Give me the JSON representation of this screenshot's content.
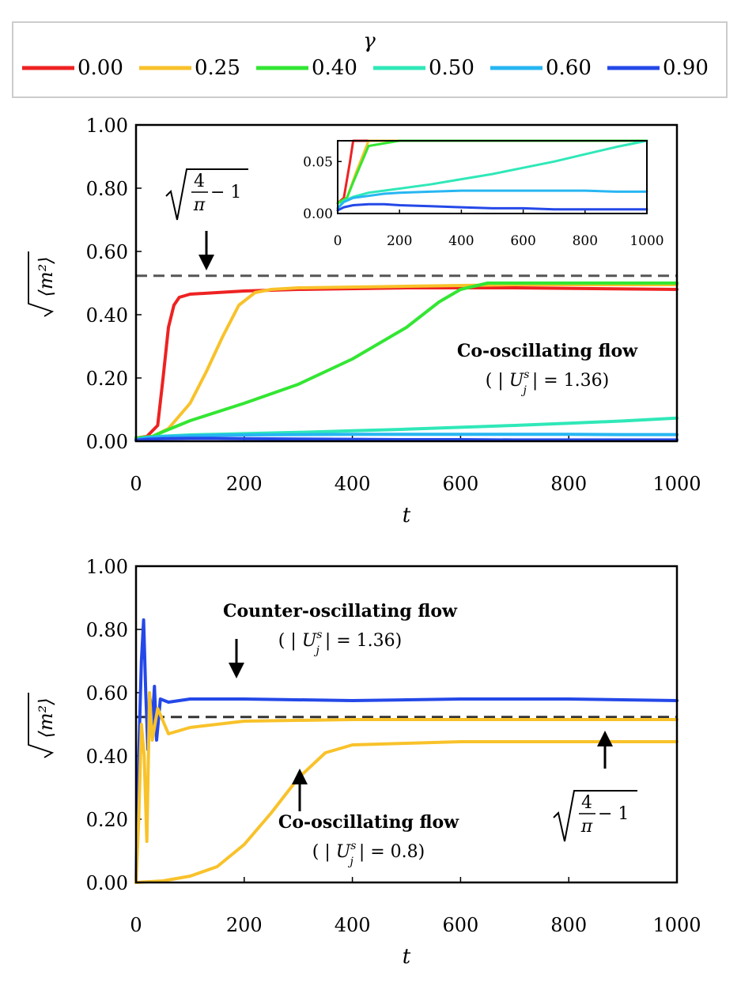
{
  "legend": {
    "title": "γ",
    "entries": [
      {
        "label": "0.00",
        "color": "#ee2222"
      },
      {
        "label": "0.25",
        "color": "#f8c22a"
      },
      {
        "label": "0.40",
        "color": "#33e633"
      },
      {
        "label": "0.50",
        "color": "#2fe8b8"
      },
      {
        "label": "0.60",
        "color": "#27b6f2"
      },
      {
        "label": "0.90",
        "color": "#2448e8"
      }
    ]
  },
  "chart_data": [
    {
      "type": "line",
      "id": "top",
      "xlabel": "t",
      "ylabel": "√⟨m²⟩",
      "xlim": [
        0,
        1000
      ],
      "ylim": [
        0,
        1
      ],
      "xticks": [
        "0",
        "200",
        "400",
        "600",
        "800",
        "1000"
      ],
      "yticks": [
        "0.00",
        "0.20",
        "0.40",
        "0.60",
        "0.80",
        "1.00"
      ],
      "reference_line": {
        "y": 0.523,
        "style": "dashed"
      },
      "series": [
        {
          "name": "γ = 0.00",
          "color": "#ee2222",
          "x": [
            0,
            20,
            40,
            50,
            60,
            70,
            80,
            100,
            150,
            200,
            300,
            500,
            700,
            1000
          ],
          "y": [
            0.01,
            0.015,
            0.05,
            0.2,
            0.36,
            0.43,
            0.455,
            0.465,
            0.47,
            0.475,
            0.48,
            0.485,
            0.485,
            0.48
          ]
        },
        {
          "name": "γ = 0.25",
          "color": "#f8c22a",
          "x": [
            0,
            30,
            60,
            100,
            130,
            160,
            190,
            220,
            250,
            300,
            500,
            700,
            1000
          ],
          "y": [
            0.01,
            0.015,
            0.04,
            0.12,
            0.22,
            0.33,
            0.43,
            0.47,
            0.48,
            0.485,
            0.49,
            0.495,
            0.495
          ]
        },
        {
          "name": "γ = 0.40",
          "color": "#33e633",
          "x": [
            0,
            30,
            50,
            100,
            200,
            300,
            400,
            500,
            560,
            600,
            650,
            700,
            800,
            1000
          ],
          "y": [
            0.01,
            0.015,
            0.03,
            0.065,
            0.12,
            0.18,
            0.26,
            0.36,
            0.44,
            0.48,
            0.5,
            0.5,
            0.5,
            0.5
          ]
        },
        {
          "name": "γ = 0.50",
          "color": "#2fe8b8",
          "x": [
            0,
            20,
            50,
            100,
            150,
            200,
            300,
            400,
            500,
            600,
            700,
            800,
            900,
            1000
          ],
          "y": [
            0.005,
            0.012,
            0.016,
            0.02,
            0.022,
            0.024,
            0.028,
            0.033,
            0.038,
            0.044,
            0.05,
            0.057,
            0.064,
            0.073
          ]
        },
        {
          "name": "γ = 0.60",
          "color": "#27b6f2",
          "x": [
            0,
            20,
            50,
            100,
            150,
            200,
            300,
            400,
            500,
            600,
            700,
            800,
            900,
            1000
          ],
          "y": [
            0.005,
            0.011,
            0.015,
            0.017,
            0.019,
            0.02,
            0.021,
            0.022,
            0.022,
            0.022,
            0.022,
            0.022,
            0.021,
            0.021
          ]
        },
        {
          "name": "γ = 0.90",
          "color": "#2448e8",
          "x": [
            0,
            20,
            50,
            100,
            150,
            200,
            300,
            400,
            500,
            600,
            700,
            800,
            900,
            1000
          ],
          "y": [
            0.003,
            0.006,
            0.008,
            0.009,
            0.009,
            0.008,
            0.007,
            0.006,
            0.005,
            0.005,
            0.004,
            0.004,
            0.004,
            0.004
          ]
        }
      ],
      "annotations": {
        "title_line1": "Co-oscillating flow",
        "title_line2_prefix": "( | ",
        "title_line2_var": "U",
        "title_line2_sup": "s",
        "title_line2_sub": "j",
        "title_line2_suffix": " | = 1.36)",
        "sqrt_num": "4",
        "sqrt_den": "π",
        "sqrt_tail": " − 1"
      }
    },
    {
      "type": "line",
      "id": "inset",
      "xlim": [
        0,
        1000
      ],
      "ylim": [
        0,
        0.07
      ],
      "xticks": [
        "0",
        "200",
        "400",
        "600",
        "800",
        "1000"
      ],
      "yticks": [
        "0.00",
        "0.05"
      ]
    },
    {
      "type": "line",
      "id": "bottom",
      "xlabel": "t",
      "ylabel": "√⟨m²⟩",
      "xlim": [
        0,
        1000
      ],
      "ylim": [
        0,
        1
      ],
      "xticks": [
        "0",
        "200",
        "400",
        "600",
        "800",
        "1000"
      ],
      "yticks": [
        "0.00",
        "0.20",
        "0.40",
        "0.60",
        "0.80",
        "1.00"
      ],
      "reference_line": {
        "y": 0.523,
        "style": "dashed"
      },
      "series": [
        {
          "name": "Counter-oscillating flow (|U_j^s| = 1.36)",
          "color": "#2448e8",
          "x": [
            0,
            5,
            10,
            14,
            18,
            22,
            26,
            30,
            34,
            38,
            45,
            60,
            100,
            200,
            400,
            600,
            800,
            1000
          ],
          "y": [
            0.0,
            0.4,
            0.7,
            0.83,
            0.6,
            0.42,
            0.58,
            0.5,
            0.62,
            0.45,
            0.58,
            0.57,
            0.58,
            0.58,
            0.575,
            0.58,
            0.58,
            0.575
          ]
        },
        {
          "name": "Counter-oscillating flow (yellow)",
          "color": "#f8c22a",
          "x": [
            0,
            5,
            10,
            15,
            20,
            25,
            30,
            40,
            60,
            100,
            200,
            400,
            600,
            800,
            1000
          ],
          "y": [
            0.0,
            0.2,
            0.5,
            0.4,
            0.13,
            0.6,
            0.45,
            0.55,
            0.47,
            0.49,
            0.51,
            0.515,
            0.515,
            0.515,
            0.515
          ]
        },
        {
          "name": "Co-oscillating flow (|U_j^s| = 0.8)",
          "color": "#f8c22a",
          "x": [
            0,
            50,
            100,
            150,
            200,
            250,
            300,
            350,
            400,
            500,
            600,
            700,
            800,
            900,
            1000
          ],
          "y": [
            0.0,
            0.005,
            0.02,
            0.05,
            0.12,
            0.22,
            0.33,
            0.41,
            0.435,
            0.44,
            0.445,
            0.445,
            0.445,
            0.445,
            0.445
          ]
        }
      ],
      "annotations": {
        "counter_line1": "Counter-oscillating flow",
        "counter_line2_prefix": "( | ",
        "counter_line2_var": "U",
        "counter_line2_sup": "s",
        "counter_line2_sub": "j",
        "counter_line2_suffix": " | = 1.36)",
        "co_line1": "Co-oscillating flow",
        "co_line2_prefix": "( | ",
        "co_line2_var": "U",
        "co_line2_sup": "s",
        "co_line2_sub": "j",
        "co_line2_suffix": " | = 0.8)",
        "sqrt_num": "4",
        "sqrt_den": "π",
        "sqrt_tail": " − 1"
      }
    }
  ]
}
